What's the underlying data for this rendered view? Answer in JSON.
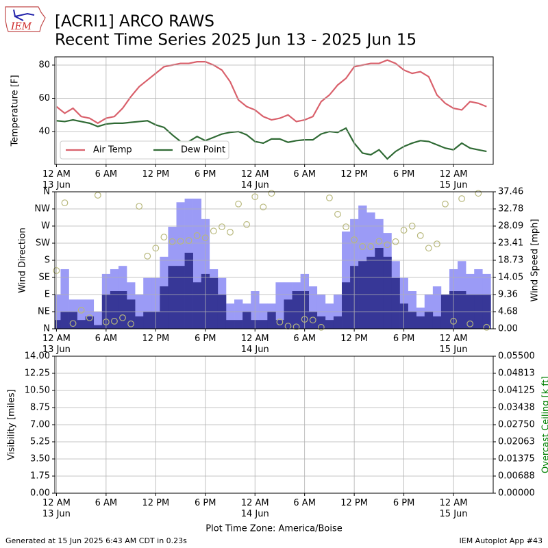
{
  "header": {
    "title": "[ACRI1] ARCO RAWS",
    "subtitle": "Recent Time Series 2025 Jun 13 - 2025 Jun 15",
    "logo_text": "IEM"
  },
  "chart_data": [
    {
      "type": "line",
      "ylabel": "Temperature [F]",
      "grid": true,
      "legend": "lower left",
      "xlim": [
        -0.2,
        52.8
      ],
      "ylim": [
        20.2,
        84.95
      ],
      "yticks": [
        40,
        60,
        80
      ],
      "xticks": [
        {
          "value": 0,
          "label": "12 AM\n13 Jun"
        },
        {
          "value": 6,
          "label": "6 AM"
        },
        {
          "value": 12,
          "label": "12 PM"
        },
        {
          "value": 18,
          "label": "6 PM"
        },
        {
          "value": 24,
          "label": "12 AM\n14 Jun"
        },
        {
          "value": 30,
          "label": "6 AM"
        },
        {
          "value": 36,
          "label": "12 PM"
        },
        {
          "value": 42,
          "label": "6 PM"
        },
        {
          "value": 48,
          "label": "12 AM\n15 Jun"
        }
      ],
      "x": [
        0,
        1,
        2,
        3,
        4,
        5,
        6,
        7,
        8,
        9,
        10,
        11,
        12,
        13,
        14,
        15,
        16,
        17,
        18,
        19,
        20,
        21,
        22,
        23,
        24,
        25,
        26,
        27,
        28,
        29,
        30,
        31,
        32,
        33,
        34,
        35,
        36,
        37,
        38,
        39,
        40,
        41,
        42,
        43,
        44,
        45,
        46,
        47,
        48,
        49,
        50,
        51,
        52
      ],
      "series": [
        {
          "name": "Air Temp",
          "color": "#d9606b",
          "values": [
            55,
            51,
            54,
            49,
            48,
            45,
            48,
            49,
            54,
            61,
            67,
            71,
            75,
            79,
            80,
            81,
            81,
            82,
            82,
            80,
            77,
            70,
            59,
            55,
            53,
            49,
            47,
            48,
            50,
            46,
            47,
            49,
            58,
            62,
            68,
            72,
            79,
            80,
            81,
            81,
            83,
            81,
            77,
            75,
            76,
            73,
            62,
            57,
            54,
            53,
            58,
            57,
            55
          ]
        },
        {
          "name": "Dew Point",
          "color": "#2f6a34",
          "values": [
            46.5,
            46,
            47,
            46,
            45,
            43,
            44.5,
            45,
            45,
            45.5,
            46,
            46.5,
            44,
            42.5,
            38,
            34,
            34,
            37,
            34.5,
            36.5,
            38.5,
            39.5,
            40,
            38,
            34,
            33,
            35.5,
            35.5,
            33.5,
            34.5,
            35,
            35,
            38.5,
            40,
            39.5,
            42,
            33,
            27,
            26,
            29,
            23.5,
            28,
            31,
            33,
            34.5,
            34,
            32,
            30,
            29,
            33,
            30,
            29,
            28
          ]
        }
      ]
    },
    {
      "type": "combo",
      "ylabel": "Wind Direction",
      "y2label": "Wind Speed [mph]",
      "grid": true,
      "xlim": [
        -0.2,
        52.8
      ],
      "ylim": [
        0,
        360
      ],
      "y2lim": [
        0,
        37.46
      ],
      "yticks": [
        {
          "value": 0,
          "label": "N"
        },
        {
          "value": 45,
          "label": "NE"
        },
        {
          "value": 90,
          "label": "E"
        },
        {
          "value": 135,
          "label": "SE"
        },
        {
          "value": 180,
          "label": "S"
        },
        {
          "value": 225,
          "label": "SW"
        },
        {
          "value": 270,
          "label": "W"
        },
        {
          "value": 315,
          "label": "NW"
        },
        {
          "value": 360,
          "label": "N"
        }
      ],
      "y2ticks": [
        {
          "value": 0,
          "label": "0.00"
        },
        4.68,
        9.36,
        14.05,
        18.73,
        23.41,
        28.09,
        32.78,
        37.46
      ],
      "xticks": [
        {
          "value": 0,
          "label": "12 AM\n13 Jun"
        },
        {
          "value": 6,
          "label": "6 AM"
        },
        {
          "value": 12,
          "label": "12 PM"
        },
        {
          "value": 18,
          "label": "6 PM"
        },
        {
          "value": 24,
          "label": "12 AM\n14 Jun"
        },
        {
          "value": 30,
          "label": "6 AM"
        },
        {
          "value": 36,
          "label": "12 PM"
        },
        {
          "value": 42,
          "label": "6 PM"
        },
        {
          "value": 48,
          "label": "12 AM\n15 Jun"
        }
      ],
      "x": [
        0,
        1,
        2,
        3,
        4,
        5,
        6,
        7,
        8,
        9,
        10,
        11,
        12,
        13,
        14,
        15,
        16,
        17,
        18,
        19,
        20,
        21,
        22,
        23,
        24,
        25,
        26,
        27,
        28,
        29,
        30,
        31,
        32,
        33,
        34,
        35,
        36,
        37,
        38,
        39,
        40,
        41,
        42,
        43,
        44,
        45,
        46,
        47,
        48,
        49,
        50,
        51,
        52
      ],
      "series": [
        {
          "type": "bar",
          "axis": "y2",
          "color": "#9b9bf6",
          "values": [
            9.4,
            16.3,
            8,
            8,
            8,
            4.7,
            15,
            16.3,
            17.2,
            12.7,
            9.4,
            13.9,
            13.9,
            19.7,
            27.9,
            34.6,
            35.6,
            35.6,
            30,
            16.3,
            13.9,
            6.9,
            8,
            6.9,
            10.3,
            6.9,
            6.9,
            12.7,
            12.7,
            12.7,
            15,
            11.6,
            9.4,
            6.9,
            9.4,
            26.6,
            30,
            33.7,
            31.8,
            30,
            26.2,
            18.5,
            13.9,
            10.3,
            5.8,
            9.4,
            11.6,
            8,
            16.3,
            18.5,
            15,
            16.3,
            15
          ]
        },
        {
          "type": "bar",
          "axis": "y2",
          "color": "#373797",
          "values": [
            2.4,
            4.7,
            4.7,
            2.4,
            3.4,
            1,
            9.4,
            10.3,
            10.3,
            8,
            3.4,
            4.7,
            4.7,
            11.6,
            17.2,
            17.2,
            20.8,
            12.7,
            15,
            13.9,
            9.4,
            2.4,
            2.4,
            4.7,
            2.4,
            2.4,
            4.7,
            2.4,
            8,
            10.3,
            10.3,
            4.7,
            3.4,
            2.4,
            3.4,
            12.7,
            17.2,
            18.5,
            19.7,
            22.1,
            19.7,
            13.9,
            6.9,
            4.7,
            3.4,
            4.7,
            3.4,
            9.4,
            10.3,
            10.3,
            9.4,
            9.4,
            9.4
          ]
        },
        {
          "type": "scatter",
          "color": "#b8b87c",
          "values": [
            153,
            331,
            14,
            49,
            29,
            351,
            18,
            20,
            29,
            13,
            322,
            191,
            212,
            241,
            229,
            230,
            232,
            245,
            239,
            257,
            268,
            254,
            328,
            274,
            347,
            320,
            356,
            18,
            7,
            5,
            25,
            23,
            4,
            344,
            301,
            268,
            234,
            216,
            216,
            230,
            221,
            229,
            259,
            270,
            245,
            212,
            223,
            328,
            20,
            342,
            13,
            356,
            4
          ]
        }
      ]
    },
    {
      "type": "line",
      "ylabel": "Visibility [miles]",
      "y2label": "Overcast Ceiling [k ft]",
      "y2color": "#008000",
      "xlabel": "Plot Time Zone: America/Boise",
      "grid": true,
      "xlim": [
        -0.2,
        52.8
      ],
      "ylim": [
        0,
        14
      ],
      "y2lim": [
        0,
        0.055
      ],
      "yticks": [
        {
          "value": 0,
          "label": "0.00"
        },
        1.75,
        {
          "value": 3.5,
          "label": "3.50"
        },
        5.25,
        {
          "value": 7,
          "label": "7.00"
        },
        8.75,
        {
          "value": 10.5,
          "label": "10.50"
        },
        12.25,
        {
          "value": 14,
          "label": "14.00"
        }
      ],
      "y2ticks": [
        {
          "value": 0,
          "label": "0.00000"
        },
        0.00688,
        0.01375,
        0.02063,
        {
          "value": 0.0275,
          "label": "0.02750"
        },
        0.03438,
        0.04125,
        0.04813,
        {
          "value": 0.055,
          "label": "0.05500"
        }
      ],
      "xticks": [
        {
          "value": 0,
          "label": "12 AM\n13 Jun"
        },
        {
          "value": 6,
          "label": "6 AM"
        },
        {
          "value": 12,
          "label": "12 PM"
        },
        {
          "value": 18,
          "label": "6 PM"
        },
        {
          "value": 24,
          "label": "12 AM\n14 Jun"
        },
        {
          "value": 30,
          "label": "6 AM"
        },
        {
          "value": 36,
          "label": "12 PM"
        },
        {
          "value": 42,
          "label": "6 PM"
        },
        {
          "value": 48,
          "label": "12 AM\n15 Jun"
        }
      ]
    }
  ],
  "footer": {
    "left": "Generated at 15 Jun 2025 6:43 AM CDT in 0.23s",
    "right": "IEM Autoplot App #43"
  }
}
